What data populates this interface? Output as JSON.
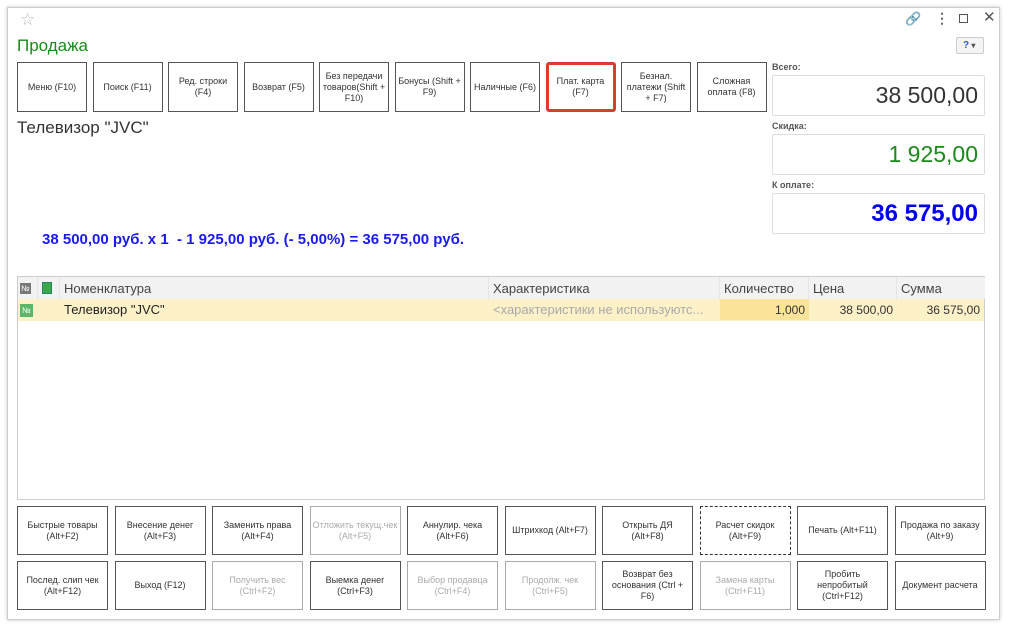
{
  "window": {
    "title": "Продажа",
    "icons": [
      "star-icon",
      "link-icon",
      "more-icon",
      "maximize-icon",
      "close-icon"
    ],
    "help_icon": "help-icon"
  },
  "top_buttons": [
    {
      "label": "Меню (F10)"
    },
    {
      "label": "Поиск (F11)"
    },
    {
      "label": "Ред. строки (F4)"
    },
    {
      "label": "Возврат (F5)"
    },
    {
      "label": "Без передачи товаров(Shift + F10)"
    },
    {
      "label": "Бонусы (Shift + F9)"
    },
    {
      "label": "Наличные (F6)"
    },
    {
      "label": "Плат. карта (F7)",
      "highlighted": true
    },
    {
      "label": "Безнал. платежи (Shift + F7)"
    },
    {
      "label": "Сложная оплата (F8)"
    }
  ],
  "product_name": "Телевизор \"JVC\"",
  "calculation": "38 500,00 руб. х 1  - 1 925,00 руб. (- 5,00%) = 36 575,00 руб.",
  "totals": {
    "total_label": "Всего:",
    "total_value": "38 500,00",
    "discount_label": "Скидка:",
    "discount_value": "1 925,00",
    "topay_label": "К оплате:",
    "topay_value": "36 575,00"
  },
  "colors": {
    "title": "#1a8a1a",
    "discount": "#1a8a1a",
    "topay": "#0000ee",
    "calc": "#1a1aee",
    "row_highlight": "#fdf1c8",
    "qty_highlight": "#fbe49a",
    "highlight_border": "#e03a30"
  },
  "table": {
    "columns": [
      "№",
      "",
      "Номенклатура",
      "Характеристика",
      "Количество",
      "Цена",
      "Сумма"
    ],
    "rows": [
      {
        "num_icon": "№",
        "name": "Телевизор \"JVC\"",
        "characteristic": "<характеристики не используютс...",
        "qty": "1,000",
        "price": "38 500,00",
        "sum": "36 575,00"
      }
    ]
  },
  "bottom_buttons": [
    [
      {
        "label": "Быстрые товары (Alt+F2)"
      },
      {
        "label": "Внесение денег (Alt+F3)"
      },
      {
        "label": "Заменить права (Alt+F4)"
      },
      {
        "label": "Отложить текущ.чек (Alt+F5)",
        "disabled": true
      },
      {
        "label": "Аннулир. чека (Alt+F6)"
      },
      {
        "label": "Штрихкод (Alt+F7)"
      },
      {
        "label": "Открыть ДЯ (Alt+F8)"
      },
      {
        "label": "Расчет скидок (Alt+F9)",
        "focused": true
      },
      {
        "label": "Печать (Alt+F11)"
      },
      {
        "label": "Продажа по заказу (Alt+9)"
      }
    ],
    [
      {
        "label": "Послед. слип чек (Alt+F12)"
      },
      {
        "label": "Выход (F12)"
      },
      {
        "label": "Получить вес (Ctrl+F2)",
        "disabled": true
      },
      {
        "label": "Выемка денег (Ctrl+F3)"
      },
      {
        "label": "Выбор продавца (Ctrl+F4)",
        "disabled": true
      },
      {
        "label": "Продолж. чек (Ctrl+F5)",
        "disabled": true
      },
      {
        "label": "Возврат без основания (Ctrl + F6)"
      },
      {
        "label": "Замена карты (Ctrl+F11)",
        "disabled": true
      },
      {
        "label": "Пробить непробитый (Ctrl+F12)"
      },
      {
        "label": "Документ расчета"
      }
    ]
  ]
}
